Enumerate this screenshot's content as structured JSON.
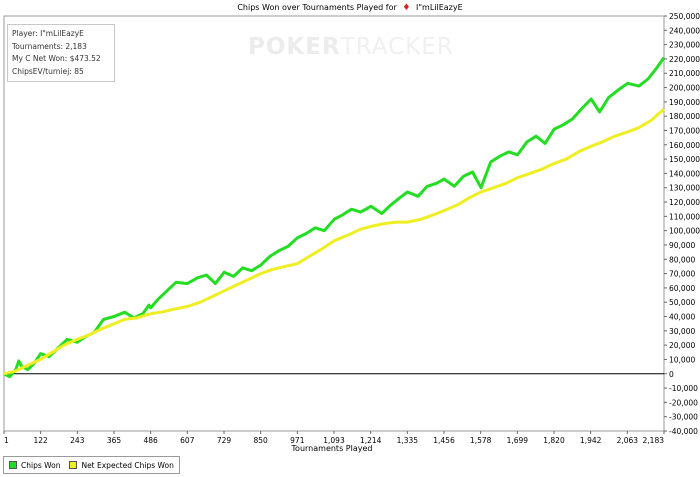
{
  "title": "Chips Won over Tournaments Played for",
  "title_suffix": "I\"mLilEazyE",
  "title_suit": "♦",
  "watermark": {
    "part1": "POKER",
    "part2": "TRACKER"
  },
  "info": {
    "player": "Player: I\"mLilEazyE",
    "tournaments": "Tournaments: 2,183",
    "net_won": "My C Net Won: $473.52",
    "chips_ev": "ChipsEV/turniej: 85"
  },
  "colors": {
    "chips_won": "#22dd22",
    "expected": "#eeee22",
    "zero_line": "#000000",
    "grid": "#e6e6e6"
  },
  "chart_data": {
    "type": "line",
    "xlabel": "Tournaments Played",
    "ylabel": "",
    "xlim": [
      1,
      2183
    ],
    "ylim": [
      -40000,
      250000
    ],
    "grid": false,
    "legend_position": "bottom-left",
    "x_ticks": [
      "1",
      "122",
      "243",
      "365",
      "486",
      "607",
      "729",
      "850",
      "971",
      "1,093",
      "1,214",
      "1,335",
      "1,456",
      "1,578",
      "1,699",
      "1,820",
      "1,942",
      "2,063",
      "2,183"
    ],
    "y_ticks": [
      "-40,000",
      "-30,000",
      "-20,000",
      "-10,000",
      "0",
      "10,000",
      "20,000",
      "30,000",
      "40,000",
      "50,000",
      "60,000",
      "70,000",
      "80,000",
      "90,000",
      "100,000",
      "110,000",
      "120,000",
      "130,000",
      "140,000",
      "150,000",
      "160,000",
      "170,000",
      "180,000",
      "190,000",
      "200,000",
      "210,000",
      "220,000",
      "230,000",
      "240,000",
      "250,000"
    ],
    "series": [
      {
        "name": "Chips Won",
        "color": "#22dd22",
        "x": [
          1,
          20,
          40,
          50,
          60,
          80,
          100,
          122,
          150,
          180,
          210,
          243,
          270,
          300,
          330,
          365,
          400,
          430,
          460,
          480,
          486,
          510,
          540,
          570,
          607,
          640,
          670,
          700,
          729,
          760,
          790,
          820,
          850,
          880,
          910,
          940,
          971,
          1000,
          1030,
          1060,
          1093,
          1120,
          1150,
          1180,
          1214,
          1250,
          1280,
          1310,
          1335,
          1370,
          1400,
          1430,
          1456,
          1490,
          1520,
          1550,
          1578,
          1610,
          1640,
          1670,
          1699,
          1730,
          1760,
          1790,
          1820,
          1850,
          1880,
          1910,
          1942,
          1970,
          2000,
          2030,
          2063,
          2100,
          2130,
          2160,
          2183
        ],
        "y": [
          0,
          -2000,
          3000,
          9000,
          5000,
          3000,
          7000,
          14000,
          12000,
          18000,
          24000,
          22000,
          26000,
          29000,
          38000,
          40000,
          43000,
          39000,
          42000,
          48000,
          46000,
          52000,
          58000,
          64000,
          63000,
          67000,
          69000,
          63000,
          71000,
          68000,
          74000,
          72000,
          76000,
          82000,
          86000,
          89000,
          95000,
          98000,
          102000,
          100000,
          108000,
          111000,
          115000,
          113000,
          117000,
          112000,
          118000,
          123000,
          127000,
          124000,
          131000,
          133000,
          136000,
          131000,
          138000,
          141000,
          130000,
          148000,
          152000,
          155000,
          153000,
          162000,
          166000,
          161000,
          171000,
          174000,
          178000,
          185000,
          192000,
          183000,
          193000,
          198000,
          203000,
          201000,
          206000,
          214000,
          221000
        ]
      },
      {
        "name": "Net Expected Chips Won",
        "color": "#eeee22",
        "x": [
          1,
          40,
          80,
          122,
          160,
          200,
          243,
          280,
          320,
          365,
          400,
          440,
          486,
          520,
          560,
          607,
          650,
          690,
          729,
          770,
          810,
          850,
          890,
          930,
          971,
          1010,
          1050,
          1093,
          1140,
          1180,
          1214,
          1260,
          1300,
          1335,
          1380,
          1420,
          1456,
          1500,
          1540,
          1578,
          1620,
          1660,
          1699,
          1740,
          1780,
          1820,
          1860,
          1900,
          1942,
          1980,
          2020,
          2063,
          2100,
          2140,
          2183
        ],
        "y": [
          0,
          2000,
          6000,
          10000,
          15000,
          20000,
          24000,
          27000,
          31000,
          35000,
          38000,
          39000,
          42000,
          43000,
          45000,
          47000,
          50000,
          54000,
          58000,
          62000,
          66000,
          70000,
          73000,
          75000,
          77000,
          82000,
          87000,
          93000,
          97000,
          101000,
          103000,
          105000,
          106000,
          106000,
          108000,
          111000,
          114000,
          118000,
          123000,
          127000,
          130000,
          133000,
          137000,
          140000,
          143000,
          147000,
          150000,
          155000,
          159000,
          162000,
          166000,
          169000,
          172000,
          177000,
          185000
        ]
      }
    ]
  }
}
